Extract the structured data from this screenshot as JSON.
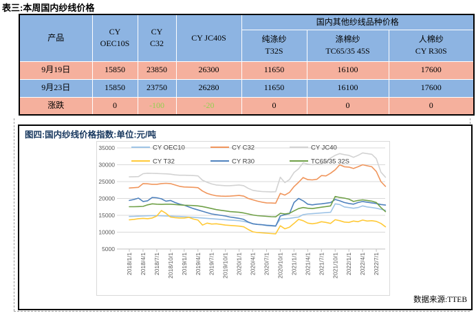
{
  "page": {
    "table_title": "表三:本周国内纱线价格",
    "figure_title": "图四:国内纱线价格指数:单位:元/吨",
    "source_label": "数据来源:TTEB"
  },
  "colors": {
    "header_blue": "#8DB4E2",
    "row_salmon": "#F5B09D",
    "row_blue": "#8DB4E2",
    "change_green": "#92D050",
    "title_navy": "#17375E"
  },
  "table": {
    "header": {
      "product": "产品",
      "col1_line1": "CY",
      "col1_line2": "OEC10S",
      "col2_line1": "CY",
      "col2_line2": "C32",
      "col3": "CY JC40S",
      "group": "国内其他纱线品种价格",
      "sub1_line1": "纯涤纱",
      "sub1_line2": "T32S",
      "sub2_line1": "涤棉纱",
      "sub2_line2": "TC65/35 45S",
      "sub3_line1": "人棉纱",
      "sub3_line2": "CY R30S"
    },
    "rows": [
      {
        "label": "9月19日",
        "values": [
          "15850",
          "23850",
          "26300",
          "11650",
          "16100",
          "17600"
        ]
      },
      {
        "label": "9月23日",
        "values": [
          "15850",
          "23750",
          "26280",
          "11650",
          "16100",
          "17600"
        ]
      },
      {
        "label": "涨跌",
        "values": [
          "0",
          "-100",
          "-20",
          "0",
          "0",
          "0"
        ]
      }
    ]
  },
  "chart_data": {
    "type": "line",
    "title": "图四:国内纱线价格指数:单位:元/吨",
    "unit": "元/吨",
    "ylim": [
      5000,
      35000
    ],
    "yticks": [
      5000,
      10000,
      15000,
      20000,
      25000,
      30000,
      35000
    ],
    "grid": true,
    "legend_position": "top-inside",
    "x_start": "2018/1",
    "x_months": 57,
    "months_per_tick": 3,
    "xticklabels": [
      "2018/1/1",
      "2018/4/1",
      "2018/7/1",
      "2018/10/1",
      "2019/1/1",
      "2019/4/1",
      "2019/7/1",
      "2019/10/1",
      "2020/1/1",
      "2020/4/1",
      "2020/7/1",
      "2020/10/1",
      "2021/1/1",
      "2021/4/1",
      "2021/7/1",
      "2021/10/1",
      "2022/1/1",
      "2022/4/1",
      "2022/7/1"
    ],
    "series": [
      {
        "name": "CY OEC10",
        "color": "#9DC3E6",
        "values": [
          14650,
          14700,
          14750,
          14800,
          14850,
          14900,
          14900,
          14850,
          14800,
          14750,
          14700,
          14650,
          14600,
          14500,
          14400,
          14300,
          14200,
          14100,
          14000,
          13900,
          13800,
          13700,
          13600,
          13500,
          13400,
          13200,
          12900,
          12500,
          12300,
          12200,
          12100,
          12000,
          11900,
          13900,
          14000,
          14100,
          14300,
          14500,
          15200,
          15400,
          15500,
          15600,
          15700,
          15800,
          15900,
          18400,
          18200,
          17500,
          17300,
          17100,
          17300,
          17800,
          17500,
          17300,
          17100,
          16800,
          16500
        ]
      },
      {
        "name": "CY C32",
        "color": "#F0955B",
        "values": [
          23100,
          23200,
          23300,
          24400,
          24350,
          24200,
          24200,
          24400,
          24500,
          24400,
          24000,
          23600,
          23400,
          23350,
          23300,
          23200,
          22200,
          21500,
          21100,
          20800,
          20700,
          20650,
          20700,
          20800,
          20900,
          20700,
          20000,
          19600,
          19200,
          18900,
          18700,
          18650,
          18600,
          21500,
          21000,
          21800,
          23500,
          24800,
          26200,
          25600,
          25500,
          25700,
          26800,
          26700,
          27500,
          28500,
          30000,
          29400,
          29300,
          28900,
          29400,
          30000,
          29700,
          29400,
          28000,
          25000,
          23600
        ]
      },
      {
        "name": "CY JC40",
        "color": "#D2D2D2",
        "values": [
          26400,
          26450,
          26500,
          27350,
          27500,
          27450,
          27400,
          27350,
          27300,
          27200,
          27000,
          26900,
          26900,
          26850,
          26800,
          26700,
          25400,
          24800,
          24300,
          24000,
          23900,
          23800,
          23800,
          23900,
          24000,
          23800,
          23000,
          22400,
          22200,
          22050,
          22000,
          21950,
          22000,
          26300,
          24700,
          25600,
          27700,
          28800,
          30600,
          30200,
          30000,
          30100,
          30200,
          31000,
          32000,
          32800,
          33300,
          33000,
          32800,
          32200,
          32800,
          33500,
          33300,
          33100,
          31800,
          27800,
          26300
        ]
      },
      {
        "name": "CY T32",
        "color": "#FFC936",
        "values": [
          13650,
          13800,
          14000,
          14100,
          14000,
          14200,
          14800,
          16400,
          15600,
          14500,
          14300,
          14200,
          14200,
          14400,
          13900,
          13600,
          12100,
          12700,
          12400,
          12500,
          12300,
          12100,
          12000,
          11900,
          11800,
          11600,
          10800,
          10100,
          9900,
          9800,
          9700,
          9600,
          9500,
          11900,
          11000,
          11500,
          12600,
          13800,
          13400,
          12700,
          12500,
          12700,
          13100,
          12900,
          12600,
          13700,
          13400,
          13000,
          12900,
          13300,
          13100,
          13600,
          13300,
          13400,
          13200,
          12600,
          11600
        ]
      },
      {
        "name": "CY R30",
        "color": "#4E81BD",
        "values": [
          19400,
          19700,
          20100,
          19100,
          19300,
          20300,
          20200,
          19900,
          19200,
          19400,
          18800,
          18300,
          18000,
          17500,
          17000,
          16600,
          16200,
          15800,
          15400,
          15200,
          15000,
          14800,
          14500,
          14300,
          14100,
          13800,
          13000,
          12500,
          12300,
          12200,
          12000,
          11900,
          11800,
          14800,
          15200,
          15500,
          18800,
          20000,
          19300,
          18300,
          18100,
          18300,
          18400,
          18600,
          18800,
          19700,
          19300,
          18800,
          18500,
          18300,
          18800,
          19100,
          18900,
          18700,
          18500,
          18200,
          18050
        ]
      },
      {
        "name": "TC65/35 32S",
        "color": "#6FA047",
        "values": [
          17550,
          17550,
          17600,
          17650,
          18100,
          18400,
          18300,
          18250,
          18300,
          18300,
          18200,
          18100,
          18000,
          17950,
          17900,
          17800,
          17600,
          17300,
          17000,
          16700,
          16500,
          16300,
          16100,
          16000,
          15900,
          15700,
          15400,
          15100,
          14900,
          14800,
          14700,
          14600,
          14550,
          15600,
          15400,
          15600,
          16300,
          17000,
          17300,
          17100,
          17000,
          17200,
          17400,
          17600,
          17800,
          20600,
          20300,
          20100,
          19800,
          19100,
          19400,
          19600,
          19400,
          19200,
          18800,
          17300,
          16100
        ]
      }
    ]
  }
}
